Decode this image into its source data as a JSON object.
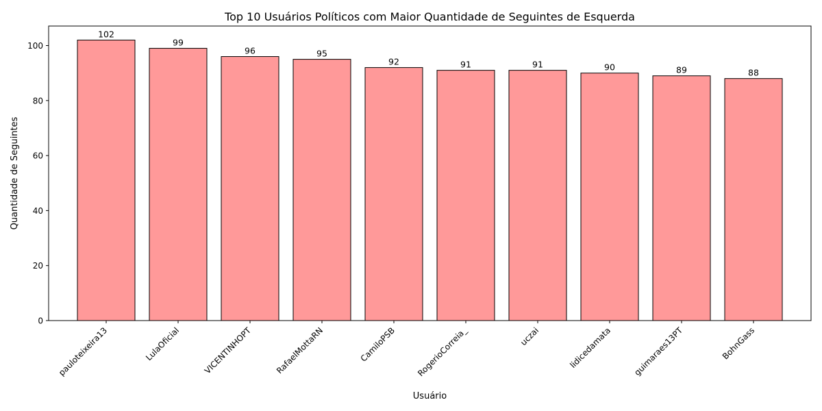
{
  "chart_data": {
    "type": "bar",
    "title": "Top 10 Usuários Políticos com Maior Quantidade de Seguintes de Esquerda",
    "xlabel": "Usuário",
    "ylabel": "Quantidade de Seguintes",
    "categories": [
      "pauloteixeira13",
      "LulaOficial",
      "VICENTINHOPT",
      "RafaelMottaRN",
      "CamiloPSB",
      "RogerioCorreia_",
      "uczai",
      "lidicedamata",
      "guimaraes13PT",
      "BohnGass"
    ],
    "values": [
      102,
      99,
      96,
      95,
      92,
      91,
      91,
      90,
      89,
      88
    ],
    "ylim": [
      0,
      107.1
    ],
    "yticks": [
      0,
      20,
      40,
      60,
      80,
      100
    ],
    "bar_color": "#ff9999",
    "edge_color": "#000000",
    "grid": false,
    "legend": "none"
  }
}
